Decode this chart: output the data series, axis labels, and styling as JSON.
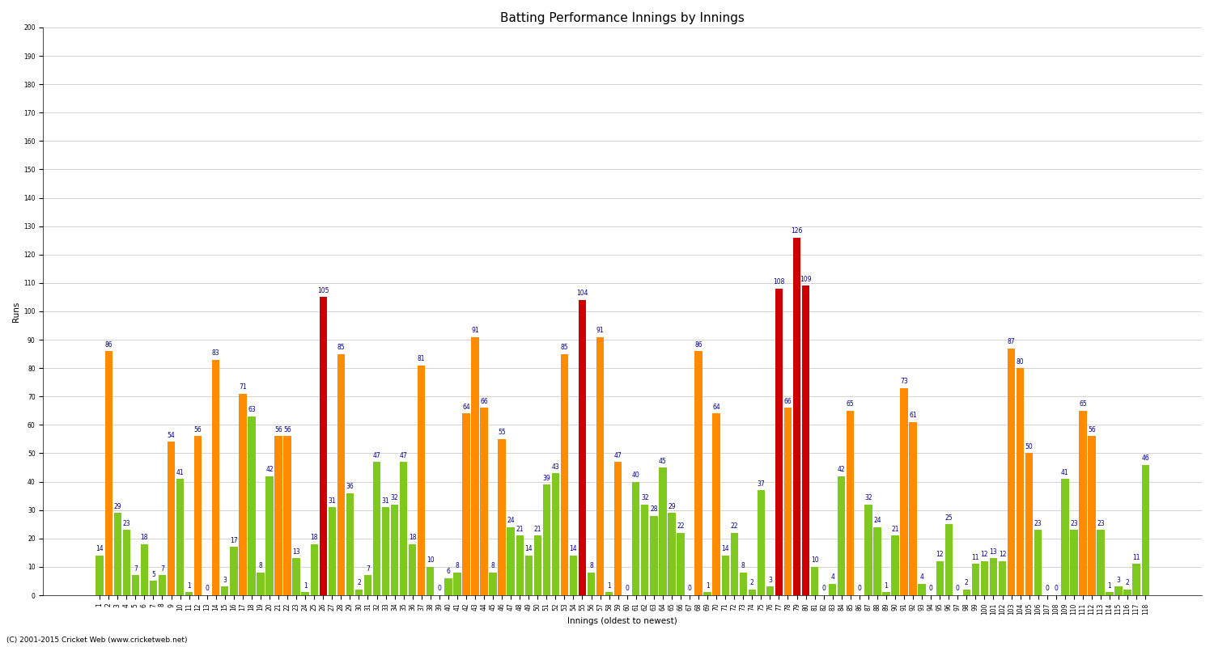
{
  "title": "Batting Performance Innings by Innings",
  "xlabel": "Innings (oldest to newest)",
  "ylabel": "Runs",
  "footer": "(C) 2001-2015 Cricket Web (www.cricketweb.net)",
  "ylim": [
    0,
    200
  ],
  "yticks": [
    0,
    10,
    20,
    30,
    40,
    50,
    60,
    70,
    80,
    90,
    100,
    110,
    120,
    130,
    140,
    150,
    160,
    170,
    180,
    190,
    200
  ],
  "scores": [
    14,
    86,
    29,
    23,
    7,
    18,
    5,
    7,
    54,
    41,
    1,
    56,
    0,
    83,
    3,
    17,
    71,
    63,
    8,
    42,
    56,
    56,
    13,
    1,
    18,
    105,
    31,
    85,
    36,
    2,
    7,
    47,
    31,
    32,
    47,
    18,
    81,
    10,
    0,
    6,
    8,
    64,
    91,
    66,
    8,
    55,
    24,
    21,
    14,
    21,
    39,
    43,
    85,
    14,
    104,
    8,
    91,
    1,
    47,
    0,
    40,
    32,
    28,
    45,
    29,
    22,
    0,
    86,
    1,
    64,
    14,
    22,
    8,
    2,
    37,
    3,
    108,
    66,
    126,
    109,
    10,
    0,
    4,
    42,
    65,
    0,
    32,
    24,
    1,
    21,
    73,
    61,
    4,
    0,
    12,
    25,
    0,
    2,
    11,
    12,
    13,
    12,
    87,
    80,
    50,
    23,
    0,
    0,
    41,
    23,
    65,
    56,
    23,
    1,
    3,
    2,
    11,
    46
  ],
  "colors": [
    "#7EC820",
    "#FF8C00",
    "#7EC820",
    "#7EC820",
    "#7EC820",
    "#7EC820",
    "#7EC820",
    "#7EC820",
    "#FF8C00",
    "#7EC820",
    "#7EC820",
    "#FF8C00",
    "#7EC820",
    "#FF8C00",
    "#7EC820",
    "#7EC820",
    "#FF8C00",
    "#7EC820",
    "#7EC820",
    "#7EC820",
    "#FF8C00",
    "#FF8C00",
    "#7EC820",
    "#7EC820",
    "#7EC820",
    "#CC0000",
    "#7EC820",
    "#FF8C00",
    "#7EC820",
    "#7EC820",
    "#7EC820",
    "#7EC820",
    "#7EC820",
    "#7EC820",
    "#7EC820",
    "#7EC820",
    "#FF8C00",
    "#7EC820",
    "#7EC820",
    "#7EC820",
    "#7EC820",
    "#FF8C00",
    "#FF8C00",
    "#FF8C00",
    "#7EC820",
    "#FF8C00",
    "#7EC820",
    "#7EC820",
    "#7EC820",
    "#7EC820",
    "#7EC820",
    "#7EC820",
    "#FF8C00",
    "#7EC820",
    "#CC0000",
    "#7EC820",
    "#FF8C00",
    "#7EC820",
    "#FF8C00",
    "#7EC820",
    "#7EC820",
    "#7EC820",
    "#7EC820",
    "#7EC820",
    "#7EC820",
    "#7EC820",
    "#7EC820",
    "#FF8C00",
    "#7EC820",
    "#FF8C00",
    "#7EC820",
    "#7EC820",
    "#7EC820",
    "#7EC820",
    "#7EC820",
    "#7EC820",
    "#CC0000",
    "#FF8C00",
    "#CC0000",
    "#CC0000",
    "#7EC820",
    "#7EC820",
    "#7EC820",
    "#7EC820",
    "#FF8C00",
    "#7EC820",
    "#7EC820",
    "#7EC820",
    "#7EC820",
    "#7EC820",
    "#FF8C00",
    "#FF8C00",
    "#7EC820",
    "#7EC820",
    "#7EC820",
    "#7EC820",
    "#7EC820",
    "#7EC820",
    "#7EC820",
    "#7EC820",
    "#7EC820",
    "#7EC820",
    "#FF8C00",
    "#FF8C00",
    "#FF8C00",
    "#7EC820",
    "#7EC820",
    "#7EC820",
    "#7EC820",
    "#7EC820",
    "#FF8C00",
    "#FF8C00",
    "#7EC820",
    "#7EC820",
    "#7EC820",
    "#7EC820",
    "#7EC820",
    "#7EC820"
  ],
  "background_color": "#ffffff",
  "grid_color": "#cccccc",
  "bar_width": 0.85,
  "value_color": "#00008B",
  "value_fontsize": 5.5,
  "title_fontsize": 11,
  "label_fontsize": 7.5,
  "tick_fontsize": 5.5
}
